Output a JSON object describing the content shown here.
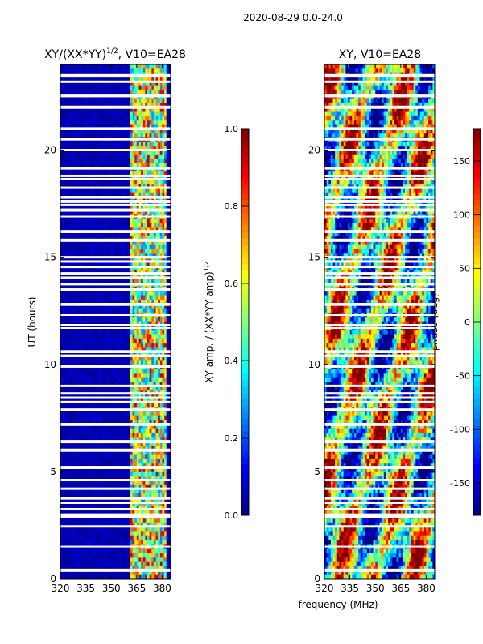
{
  "suptitle": "2020-08-29 0.0-24.0",
  "colormap": [
    "#00007f",
    "#0000ff",
    "#007fff",
    "#00ffff",
    "#7fff7f",
    "#ffff00",
    "#ff7f00",
    "#ff0000",
    "#7f0000"
  ],
  "chart_data": [
    {
      "type": "heatmap",
      "title_main": "XY/(XX*YY)",
      "title_exp": "1/2",
      "title_suffix": ", V10=EA28",
      "ylabel": "UT (hours)",
      "xlim": [
        320,
        385
      ],
      "ylim": [
        0,
        24
      ],
      "x_ticks": [
        320,
        335,
        350,
        365,
        380
      ],
      "y_ticks": [
        0,
        5,
        10,
        15,
        20
      ],
      "colorbar": {
        "label_main": "XY amp. / (XX*YY amp)",
        "label_exp": "1/2",
        "range": [
          0.0,
          1.0
        ],
        "ticks": [
          "0.0",
          "0.2",
          "0.4",
          "0.6",
          "0.8",
          "1.0"
        ]
      }
    },
    {
      "type": "heatmap",
      "title": "XY, V10=EA28",
      "xlabel": "frequency (MHz)",
      "xlim": [
        320,
        385
      ],
      "ylim": [
        0,
        24
      ],
      "x_ticks": [
        320,
        335,
        350,
        365,
        380
      ],
      "y_ticks": [
        0,
        5,
        10,
        15,
        20
      ],
      "colorbar": {
        "label": "phase (deg)",
        "range": [
          -180,
          180
        ],
        "ticks": [
          "-150",
          "-100",
          "-50",
          "0",
          "50",
          "100",
          "150"
        ]
      }
    }
  ],
  "flagged_hours": [
    0.4,
    1.5,
    2.45,
    2.9,
    3.0,
    3.25,
    3.55,
    3.75,
    4.2,
    4.6,
    5.2,
    6.0,
    6.4,
    7.2,
    7.9,
    8.25,
    8.45,
    8.65,
    9.0,
    9.9,
    10.4,
    10.6,
    11.7,
    11.85,
    12.3,
    12.8,
    13.5,
    13.75,
    14.05,
    14.25,
    14.55,
    14.8,
    15.0,
    15.8,
    16.2,
    16.9,
    17.2,
    17.45,
    17.6,
    17.8,
    18.25,
    18.65,
    18.8,
    19.15,
    20.0,
    20.5,
    21.0,
    22.0,
    22.5,
    22.55,
    23.2,
    23.45,
    23.5
  ]
}
